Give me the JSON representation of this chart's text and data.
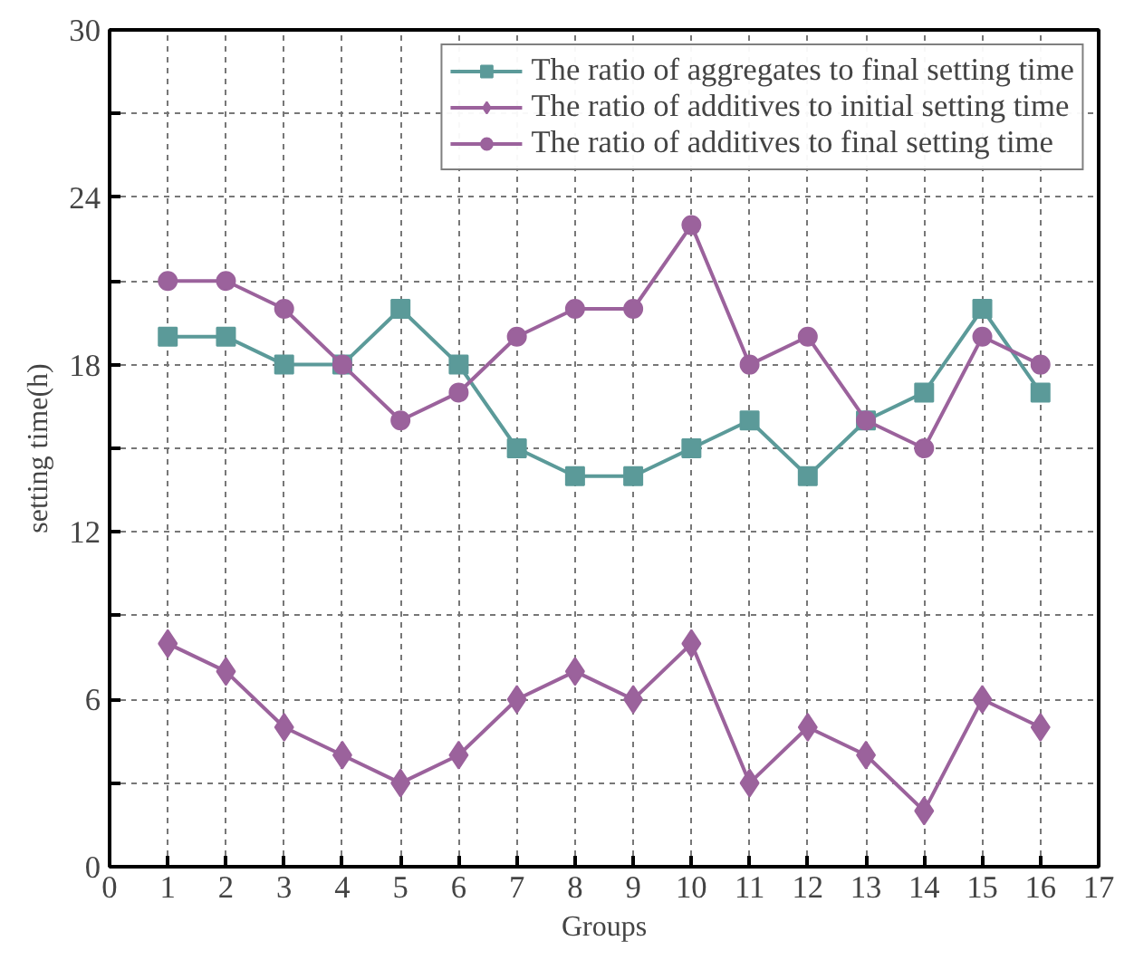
{
  "chart_data": {
    "type": "line",
    "xlabel": "Groups",
    "ylabel": "setting time(h)",
    "x": [
      1,
      2,
      3,
      4,
      5,
      6,
      7,
      8,
      9,
      10,
      11,
      12,
      13,
      14,
      15,
      16
    ],
    "xlim": [
      0,
      17
    ],
    "xticks": [
      0,
      1,
      2,
      3,
      4,
      5,
      6,
      7,
      8,
      9,
      10,
      11,
      12,
      13,
      14,
      15,
      16,
      17
    ],
    "ylim": [
      0,
      30
    ],
    "yticks": [
      0,
      {
        "value": 3,
        "label": null
      },
      6,
      {
        "value": 9,
        "label": null
      },
      12,
      {
        "value": 15,
        "label": null
      },
      18,
      {
        "value": 21,
        "label": null
      },
      24,
      {
        "value": 27,
        "label": null
      },
      30
    ],
    "grid": true,
    "legend": "top right",
    "line_style": "solid",
    "series": [
      {
        "name": "The ratio of aggregates to final setting time",
        "color": "#5b9a99",
        "marker": "square",
        "values": [
          19,
          19,
          18,
          18,
          20,
          18,
          15,
          14,
          14,
          15,
          16,
          14,
          16,
          17,
          20,
          17
        ]
      },
      {
        "name": "The ratio of additives to initial setting time",
        "color": "#9b629c",
        "marker": "diamond",
        "values": [
          8,
          7,
          5,
          4,
          3,
          4,
          6,
          7,
          6,
          8,
          3,
          5,
          4,
          2,
          6,
          5
        ]
      },
      {
        "name": "The ratio of additives to final setting time",
        "color": "#9b629c",
        "marker": "circle",
        "values": [
          21,
          21,
          20,
          18,
          16,
          17,
          19,
          20,
          20,
          23,
          18,
          19,
          16,
          15,
          19,
          18
        ]
      }
    ]
  }
}
